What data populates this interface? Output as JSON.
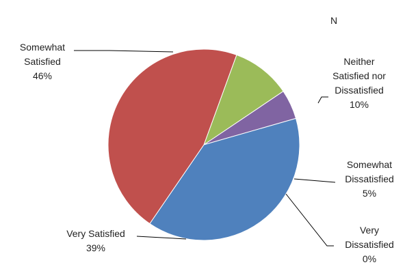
{
  "chart_data": {
    "type": "pie",
    "title": "N",
    "slices": [
      {
        "label_lines": [
          "Neither",
          "Satisfied nor",
          "Dissatisfied"
        ],
        "percent_label": "10%",
        "value": 10,
        "color": "#9bbb59"
      },
      {
        "label_lines": [
          "Somewhat",
          "Dissatisfied"
        ],
        "percent_label": "5%",
        "value": 5,
        "color": "#8064a2"
      },
      {
        "label_lines": [
          "Very",
          "Dissatisfied"
        ],
        "percent_label": "0%",
        "value": 0,
        "color": "#4bacc6"
      },
      {
        "label_lines": [
          "Very Satisfied"
        ],
        "percent_label": "39%",
        "value": 39,
        "color": "#4f81bd"
      },
      {
        "label_lines": [
          "Somewhat",
          "Satisfied"
        ],
        "percent_label": "46%",
        "value": 46,
        "color": "#c0504d"
      }
    ],
    "start_angle_deg": 70,
    "direction": "clockwise",
    "legend": "none"
  }
}
